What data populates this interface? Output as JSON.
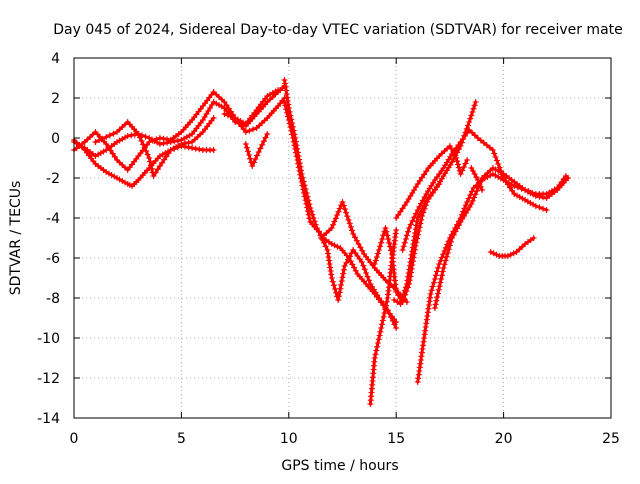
{
  "chart_data": {
    "type": "scatter",
    "title": "Day 045 of 2024, Sidereal Day-to-day VTEC variation (SDTVAR) for receiver mate",
    "xlabel": "GPS time / hours",
    "ylabel": "SDTVAR / TECUs",
    "xlim": [
      0,
      25
    ],
    "ylim": [
      -14,
      4
    ],
    "xticks": [
      "0",
      "5",
      "10",
      "15",
      "20",
      "25"
    ],
    "yticks": [
      "4",
      "2",
      "0",
      "-2",
      "-4",
      "-6",
      "-8",
      "-10",
      "-12",
      "-14"
    ],
    "grid": true,
    "marker": "+",
    "color": "#ff0000",
    "series": [
      {
        "x": [
          0.0,
          0.5,
          1.0,
          1.5,
          2.0,
          2.5,
          3.0,
          3.5,
          4.0,
          4.5,
          5.0,
          5.5,
          6.0,
          6.5,
          7.0,
          7.5,
          8.0,
          8.5,
          9.0,
          9.5,
          9.8
        ],
        "y": [
          -0.2,
          -0.5,
          -0.9,
          -0.6,
          -0.2,
          0.1,
          0.2,
          0.0,
          -0.3,
          -0.2,
          -0.1,
          0.2,
          0.9,
          1.8,
          1.5,
          0.8,
          0.6,
          1.2,
          1.8,
          2.3,
          2.6
        ]
      },
      {
        "x": [
          0.0,
          0.5,
          1.0,
          1.5,
          2.0,
          2.5,
          3.0,
          3.5,
          4.0,
          4.5,
          5.0,
          5.5,
          6.0,
          6.5,
          7.0,
          7.5,
          8.0,
          8.5,
          9.0,
          9.5
        ],
        "y": [
          -0.6,
          -0.2,
          0.3,
          -0.3,
          -1.1,
          -1.6,
          -0.9,
          -0.2,
          0.0,
          -0.1,
          0.3,
          0.9,
          1.6,
          2.3,
          1.8,
          1.0,
          0.7,
          1.4,
          2.1,
          2.4
        ]
      },
      {
        "x": [
          0.0,
          0.5,
          1.0,
          1.5,
          2.0,
          2.5,
          2.7,
          3.0,
          3.5,
          4.0,
          4.5,
          5.0,
          5.5,
          6.0,
          6.5
        ],
        "y": [
          -0.1,
          -0.6,
          -1.3,
          -1.7,
          -2.0,
          -2.3,
          -2.4,
          -2.1,
          -1.5,
          -0.9,
          -0.6,
          -0.4,
          -0.5,
          -0.6,
          -0.6
        ]
      },
      {
        "x": [
          1.0,
          2.0,
          2.5,
          3.0,
          3.5,
          3.7,
          4.0,
          4.5,
          5.0,
          5.5,
          6.0,
          6.5
        ],
        "y": [
          -0.2,
          0.3,
          0.8,
          0.2,
          -1.0,
          -1.9,
          -1.4,
          -0.6,
          -0.3,
          -0.2,
          0.3,
          1.0
        ]
      },
      {
        "x": [
          7.0,
          7.5,
          8.0,
          8.5,
          9.0,
          9.5,
          9.8
        ],
        "y": [
          1.2,
          1.0,
          0.3,
          0.5,
          1.0,
          1.6,
          2.0
        ]
      },
      {
        "x": [
          8.0,
          8.3,
          8.6,
          9.0
        ],
        "y": [
          -0.3,
          -1.4,
          -0.7,
          0.2
        ]
      },
      {
        "x": [
          9.8,
          10.0,
          10.3,
          10.6,
          11.0,
          11.3,
          11.6,
          12.0,
          12.4,
          12.8,
          13.2,
          13.6,
          14.0,
          14.5,
          15.0
        ],
        "y": [
          2.9,
          1.5,
          0.0,
          -1.8,
          -3.5,
          -4.5,
          -5.0,
          -5.3,
          -5.5,
          -6.0,
          -6.8,
          -7.3,
          -7.8,
          -8.5,
          -9.2
        ]
      },
      {
        "x": [
          9.8,
          10.2,
          10.6,
          11.0,
          11.4,
          11.8,
          12.0,
          12.3,
          12.6,
          13.0,
          13.4,
          13.8,
          14.2,
          14.6,
          15.0
        ],
        "y": [
          1.8,
          0.0,
          -2.2,
          -4.2,
          -4.7,
          -5.6,
          -7.0,
          -8.1,
          -6.4,
          -5.6,
          -6.2,
          -7.3,
          -8.0,
          -8.6,
          -9.5
        ]
      },
      {
        "x": [
          11.5,
          12.0,
          12.5,
          13.0,
          13.5,
          14.0,
          14.5,
          15.0,
          15.5
        ],
        "y": [
          -5.0,
          -4.5,
          -3.2,
          -4.8,
          -5.8,
          -6.5,
          -7.1,
          -7.6,
          -8.2
        ]
      },
      {
        "x": [
          13.8,
          14.0,
          14.3,
          14.6,
          14.8,
          15.0
        ],
        "y": [
          -13.3,
          -11.0,
          -9.5,
          -8.0,
          -6.2,
          -4.6
        ]
      },
      {
        "x": [
          14.0,
          14.2,
          14.5,
          14.8,
          15.0,
          15.3,
          15.6,
          15.9,
          16.2,
          16.5,
          17.0
        ],
        "y": [
          -6.3,
          -5.6,
          -4.5,
          -5.8,
          -7.7,
          -8.2,
          -7.3,
          -5.4,
          -3.9,
          -3.0,
          -2.3
        ]
      },
      {
        "x": [
          14.9,
          15.2,
          15.5,
          15.8,
          16.0,
          16.4,
          16.8,
          17.2,
          17.6,
          18.0,
          18.4,
          18.7
        ],
        "y": [
          -8.1,
          -8.3,
          -7.3,
          -5.3,
          -4.0,
          -3.2,
          -2.6,
          -1.9,
          -1.2,
          -0.4,
          0.8,
          1.8
        ]
      },
      {
        "x": [
          15.0,
          15.5,
          16.0,
          16.5,
          17.0,
          17.5,
          17.8,
          18.0,
          18.3
        ],
        "y": [
          -4.0,
          -3.2,
          -2.3,
          -1.5,
          -0.9,
          -0.4,
          -1.0,
          -1.8,
          -1.1
        ]
      },
      {
        "x": [
          15.3,
          15.6,
          16.0,
          16.4,
          16.8,
          17.2,
          17.6,
          18.0,
          18.4,
          18.8,
          19.5,
          20.0,
          20.5,
          21.0,
          21.5,
          22.0
        ],
        "y": [
          -5.6,
          -4.5,
          -3.6,
          -2.8,
          -2.1,
          -1.5,
          -0.8,
          -0.2,
          0.4,
          0.0,
          -0.6,
          -2.0,
          -2.8,
          -3.1,
          -3.4,
          -3.6
        ]
      },
      {
        "x": [
          16.0,
          16.3,
          16.6,
          17.0,
          17.5,
          18.0,
          18.3,
          18.6,
          19.0,
          19.5,
          20.0,
          20.5,
          21.0,
          21.5,
          22.0,
          22.5,
          22.9
        ],
        "y": [
          -12.2,
          -10.0,
          -7.8,
          -6.3,
          -5.0,
          -4.0,
          -3.2,
          -2.5,
          -2.1,
          -1.8,
          -2.1,
          -2.4,
          -2.6,
          -2.8,
          -2.8,
          -2.5,
          -1.9
        ]
      },
      {
        "x": [
          16.8,
          17.2,
          17.6,
          18.0,
          18.5,
          19.0,
          19.5,
          20.0,
          20.5,
          21.0,
          21.5,
          22.0,
          22.5,
          23.0
        ],
        "y": [
          -8.5,
          -6.5,
          -5.0,
          -4.2,
          -3.3,
          -2.0,
          -1.5,
          -1.8,
          -2.2,
          -2.6,
          -2.9,
          -3.0,
          -2.6,
          -2.0
        ]
      },
      {
        "x": [
          18.5,
          18.8,
          19.0
        ],
        "y": [
          -1.5,
          -2.1,
          -2.6
        ]
      },
      {
        "x": [
          19.4,
          19.8,
          20.2,
          20.6,
          21.0,
          21.4
        ],
        "y": [
          -5.7,
          -5.9,
          -5.9,
          -5.7,
          -5.3,
          -5.0
        ]
      }
    ]
  }
}
